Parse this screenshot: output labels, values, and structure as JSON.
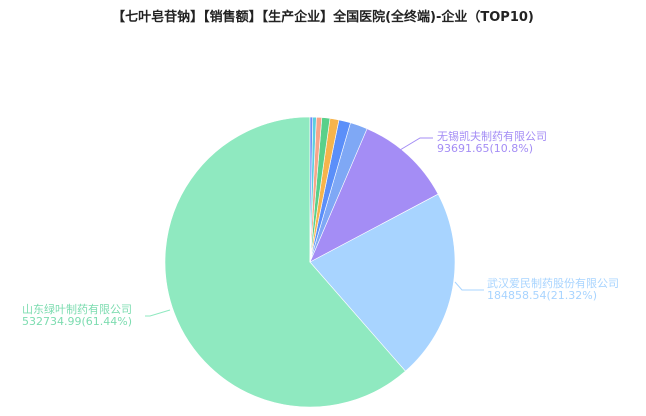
{
  "chart_data": {
    "type": "pie",
    "title": "【七叶皂苷钠】【销售额】【生产企业】全国医院(全终端)-企业（TOP10)",
    "slices": [
      {
        "name": "",
        "value": 2601,
        "color": "#6c8ef5"
      },
      {
        "name": "",
        "value": 3468,
        "color": "#5bcfe0"
      },
      {
        "name": "",
        "value": 5202,
        "color": "#f7a58a"
      },
      {
        "name": "",
        "value": 7804,
        "color": "#5ad08a"
      },
      {
        "name": "",
        "value": 8671,
        "color": "#f6b44c"
      },
      {
        "name": "",
        "value": 11272,
        "color": "#5b8ff9"
      },
      {
        "name": "",
        "value": 16779,
        "color": "#7fa8f5"
      },
      {
        "name": "无锡凯夫制药有限公司",
        "value": 93691.65,
        "percent": "10.8%",
        "label": "93691.65(10.8%)",
        "color": "#a48df5"
      },
      {
        "name": "武汉爱民制药股份有限公司",
        "value": 184858.54,
        "percent": "21.32%",
        "label": "184858.54(21.32%)",
        "color": "#a8d4ff"
      },
      {
        "name": "山东绿叶制药有限公司",
        "value": 532734.99,
        "percent": "61.44%",
        "label": "532734.99(61.44%)",
        "color": "#8fe9c0"
      }
    ],
    "start": "top",
    "direction": "clockwise"
  }
}
